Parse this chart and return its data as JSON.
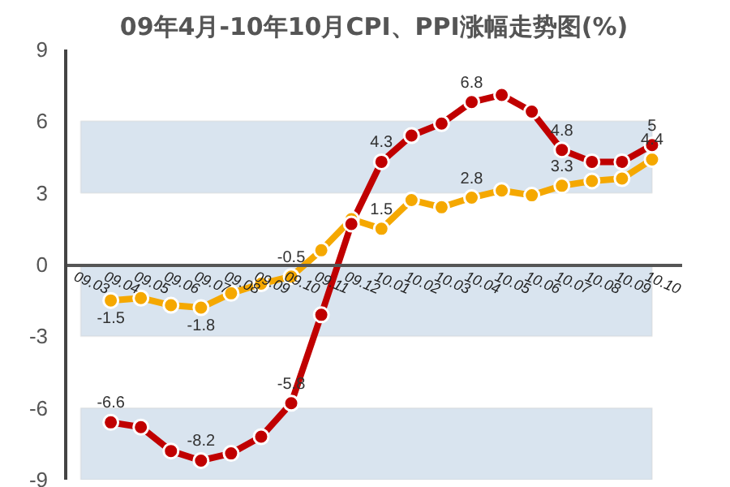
{
  "chart_data": {
    "type": "line",
    "title": "09年4月-10年10月CPI、PPI涨幅走势图(%)",
    "categories": [
      "09.03",
      "09.04",
      "09.05",
      "09.06",
      "09.07",
      "09.08",
      "09.09",
      "09.10",
      "09.11",
      "09.12",
      "10.01",
      "10.02",
      "10.03",
      "10.04",
      "10.05",
      "10.06",
      "10.07",
      "10.08",
      "10.09",
      "10.10"
    ],
    "series": [
      {
        "color": "#c00000",
        "values": [
          null,
          -6.6,
          -6.8,
          -7.8,
          -8.2,
          -7.9,
          -7.2,
          -5.8,
          -2.1,
          1.7,
          4.3,
          5.4,
          5.9,
          6.8,
          7.1,
          6.4,
          4.8,
          4.3,
          4.3,
          5
        ],
        "value_labels": [
          null,
          "-6.6",
          null,
          null,
          "-8.2",
          null,
          null,
          "-5.8",
          null,
          null,
          "4.3",
          null,
          null,
          "6.8",
          null,
          null,
          "4.8",
          null,
          null,
          "5"
        ]
      },
      {
        "color": "#f5a800",
        "values": [
          null,
          -1.5,
          -1.4,
          -1.7,
          -1.8,
          -1.2,
          -0.8,
          -0.5,
          0.6,
          1.9,
          1.5,
          2.7,
          2.4,
          2.8,
          3.1,
          2.9,
          3.3,
          3.5,
          3.6,
          4.4
        ],
        "value_labels": [
          null,
          "-1.5",
          null,
          null,
          "-1.8",
          null,
          null,
          "-0.5",
          null,
          null,
          "1.5",
          null,
          null,
          "2.8",
          null,
          null,
          "3.3",
          null,
          null,
          "4.4"
        ]
      }
    ],
    "ylim": [
      -9,
      9
    ],
    "yticks": [
      -9,
      -6,
      -3,
      0,
      3,
      6,
      9
    ],
    "bands": [
      {
        "axis": "y",
        "from": 3,
        "to": 6,
        "color": "#d9e4ef"
      },
      {
        "axis": "y",
        "from": -3,
        "to": 0,
        "color": "#d9e4ef"
      },
      {
        "axis": "y",
        "from": -9,
        "to": -6,
        "color": "#d9e4ef"
      }
    ],
    "marker": "circle",
    "line_style": "solid",
    "grid": false
  }
}
